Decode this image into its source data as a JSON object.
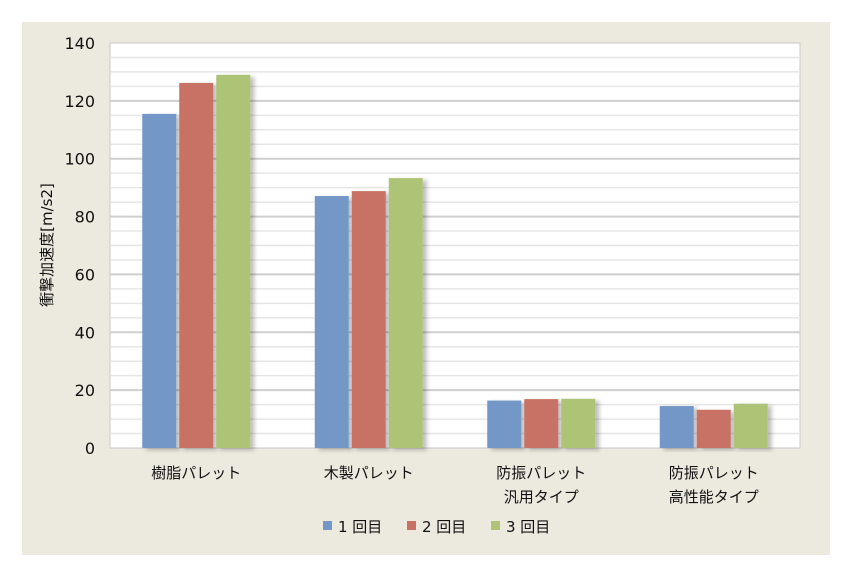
{
  "chart_data": {
    "type": "bar",
    "title": "",
    "xlabel": "",
    "ylabel": "衝撃加速度[m/s2]",
    "ylim": [
      0,
      140
    ],
    "yticks": [
      0,
      20,
      40,
      60,
      80,
      100,
      120,
      140
    ],
    "minor_grid_step": 5,
    "grid": true,
    "legend_position": "bottom",
    "categories": [
      [
        "樹脂パレット"
      ],
      [
        "木製パレット"
      ],
      [
        "防振パレット",
        "汎用タイプ"
      ],
      [
        "防振パレット",
        "高性能タイプ"
      ]
    ],
    "series": [
      {
        "name": "1回目",
        "color": "#7397c6",
        "values": [
          115.5,
          87.1,
          16.4,
          14.5
        ]
      },
      {
        "name": "2回目",
        "color": "#c87165",
        "values": [
          126.2,
          88.8,
          16.9,
          13.2
        ]
      },
      {
        "name": "3回目",
        "color": "#adc477",
        "values": [
          129.0,
          93.3,
          17.0,
          15.3
        ]
      }
    ]
  }
}
